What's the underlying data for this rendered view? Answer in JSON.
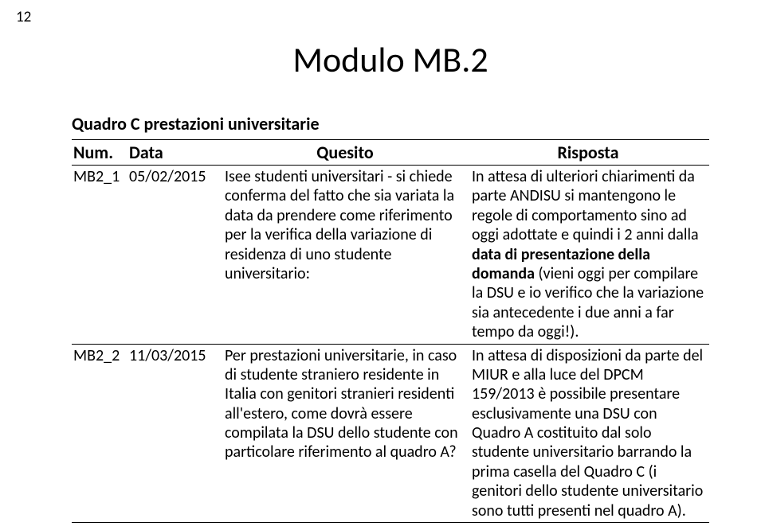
{
  "page_number": "12",
  "title": "Modulo MB.2",
  "subtitle": "Quadro C prestazioni universitarie",
  "headers": {
    "num": "Num.",
    "data": "Data",
    "quesito": "Quesito",
    "risposta": "Risposta"
  },
  "rows": [
    {
      "num": "MB2_1",
      "date": "05/02/2015",
      "quesito": "Isee studenti universitari - si chiede conferma del fatto che sia variata la data da prendere come riferimento per la verifica della variazione di residenza di uno studente universitario:",
      "risposta_pre": "In attesa di ulteriori chiarimenti da parte ANDISU si mantengono le regole di comportamento sino ad oggi adottate e quindi i 2 anni dalla ",
      "risposta_bold": "data di presentazione della domanda",
      "risposta_post": " (vieni oggi per compilare la DSU e io verifico che la variazione sia antecedente i due anni a far tempo da oggi!)."
    },
    {
      "num": "MB2_2",
      "date": "11/03/2015",
      "quesito": "Per prestazioni universitarie, in caso di studente straniero residente in Italia con genitori stranieri residenti all'estero, come dovrà essere compilata la DSU dello studente con particolare riferimento al quadro A?",
      "risposta_plain": "In attesa di disposizioni da parte del MIUR e alla luce del DPCM 159/2013 è possibile presentare esclusivamente una DSU con Quadro A costituito dal solo studente universitario barrando la prima casella del Quadro C (i genitori dello studente universitario sono tutti presenti nel quadro A)."
    }
  ]
}
